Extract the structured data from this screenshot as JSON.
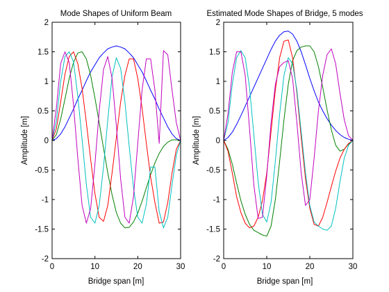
{
  "figure": {
    "background": "#ffffff"
  },
  "chart_data": [
    {
      "type": "line",
      "title": "Mode Shapes of Uniform Beam",
      "xlabel": "Bridge span [m]",
      "ylabel": "Amplitude [m]",
      "xlim": [
        0,
        30
      ],
      "ylim": [
        -2,
        2
      ],
      "xticks": [
        0,
        10,
        20,
        30
      ],
      "xtick_labels": [
        "0",
        "10",
        "20",
        "30"
      ],
      "yticks": [
        -2,
        -1.5,
        -1,
        -0.5,
        0,
        0.5,
        1,
        1.5,
        2
      ],
      "ytick_labels": [
        "-2",
        "-1.5",
        "-1",
        "-0.5",
        "0",
        "0.5",
        "1",
        "1.5",
        "2"
      ],
      "grid": false,
      "legend": "none",
      "series": [
        {
          "color": "#0000ff",
          "x": [
            0,
            1,
            2,
            3,
            4,
            5,
            6,
            7,
            8,
            9,
            10,
            11,
            12,
            13,
            14,
            15,
            16,
            17,
            18,
            19,
            20,
            21,
            22,
            23,
            24,
            25,
            26,
            27,
            28,
            29,
            30
          ],
          "y": [
            0,
            0.03,
            0.11,
            0.23,
            0.38,
            0.53,
            0.7,
            0.85,
            1.01,
            1.16,
            1.28,
            1.4,
            1.48,
            1.55,
            1.58,
            1.6,
            1.58,
            1.55,
            1.48,
            1.4,
            1.28,
            1.16,
            1.01,
            0.85,
            0.7,
            0.53,
            0.38,
            0.23,
            0.11,
            0.03,
            0
          ]
        },
        {
          "color": "#008000",
          "x": [
            0,
            1,
            2,
            3,
            4,
            5,
            6,
            7,
            8,
            9,
            10,
            11,
            12,
            13,
            14,
            15,
            16,
            17,
            18,
            19,
            20,
            21,
            22,
            23,
            24,
            25,
            26,
            27,
            28,
            29,
            30
          ],
          "y": [
            0,
            0.1,
            0.36,
            0.7,
            1.05,
            1.32,
            1.48,
            1.5,
            1.38,
            1.1,
            0.72,
            0.3,
            -0.13,
            -0.55,
            -0.92,
            -1.22,
            -1.4,
            -1.48,
            -1.47,
            -1.38,
            -1.23,
            -1.03,
            -0.8,
            -0.58,
            -0.38,
            -0.22,
            -0.1,
            -0.03,
            0.01,
            0.01,
            0
          ]
        },
        {
          "color": "#ff0000",
          "x": [
            0,
            1,
            2,
            3,
            4,
            5,
            6,
            7,
            8,
            9,
            10,
            11,
            12,
            13,
            14,
            15,
            16,
            17,
            18,
            19,
            20,
            21,
            22,
            23,
            24,
            25,
            26,
            27,
            28,
            29,
            30
          ],
          "y": [
            0,
            0.2,
            0.65,
            1.12,
            1.42,
            1.5,
            1.3,
            0.88,
            0.3,
            -0.32,
            -0.9,
            -1.3,
            -1.37,
            -1.1,
            -0.55,
            0.05,
            0.65,
            1.1,
            1.38,
            1.38,
            1.05,
            0.55,
            -0.05,
            -0.62,
            -1.05,
            -1.4,
            -1.38,
            -1.05,
            -0.55,
            -0.15,
            0
          ]
        },
        {
          "color": "#00bfbf",
          "x": [
            0,
            1,
            2,
            3,
            4,
            5,
            6,
            7,
            8,
            9,
            10,
            11,
            12,
            13,
            14,
            15,
            16,
            17,
            18,
            19,
            20,
            21,
            22,
            23,
            24,
            25,
            26,
            27,
            28,
            29,
            30
          ],
          "y": [
            0,
            0.33,
            1.0,
            1.42,
            1.5,
            1.33,
            0.75,
            0.02,
            -0.75,
            -1.3,
            -1.4,
            -1.1,
            -0.45,
            0.35,
            1.08,
            1.4,
            1.22,
            0.65,
            -0.1,
            -0.8,
            -1.3,
            -1.4,
            -1.08,
            -0.45,
            -0.45,
            -1.2,
            -1.48,
            -1.3,
            -0.75,
            -0.25,
            0
          ]
        },
        {
          "color": "#bf00bf",
          "x": [
            0,
            1,
            2,
            3,
            4,
            5,
            6,
            7,
            8,
            9,
            10,
            11,
            12,
            13,
            14,
            15,
            16,
            17,
            18,
            19,
            20,
            21,
            22,
            23,
            24,
            25,
            26,
            27,
            28,
            29,
            30
          ],
          "y": [
            0,
            0.55,
            1.3,
            1.5,
            1.32,
            0.6,
            -0.3,
            -1.1,
            -1.4,
            -1.15,
            -0.4,
            0.5,
            1.2,
            1.42,
            1.05,
            0.25,
            -0.65,
            -1.3,
            -1.4,
            -0.95,
            -0.05,
            0.85,
            1.38,
            1.38,
            0.85,
            -0.05,
            1.52,
            1.45,
            0.85,
            0.3,
            0
          ]
        }
      ]
    },
    {
      "type": "line",
      "title": "Estimated Mode Shapes of Bridge, 5 modes",
      "xlabel": "Bridge span [m]",
      "ylabel": "Amplitude [m]",
      "xlim": [
        0,
        30
      ],
      "ylim": [
        -2,
        2
      ],
      "xticks": [
        0,
        10,
        20,
        30
      ],
      "xtick_labels": [
        "0",
        "10",
        "20",
        "30"
      ],
      "yticks": [
        -2,
        -1.5,
        -1,
        -0.5,
        0,
        0.5,
        1,
        1.5,
        2
      ],
      "ytick_labels": [
        "-2",
        "-1.5",
        "-1",
        "-0.5",
        "0",
        "0.5",
        "1",
        "1.5",
        "2"
      ],
      "grid": false,
      "legend": "none",
      "series": [
        {
          "color": "#0000ff",
          "x": [
            0,
            1,
            2,
            3,
            4,
            5,
            6,
            7,
            8,
            9,
            10,
            11,
            12,
            13,
            14,
            15,
            16,
            17,
            18,
            19,
            20,
            21,
            22,
            23,
            24,
            25,
            26,
            27,
            28,
            29,
            30
          ],
          "y": [
            0,
            0.05,
            0.14,
            0.27,
            0.42,
            0.58,
            0.74,
            0.9,
            1.06,
            1.22,
            1.38,
            1.54,
            1.68,
            1.78,
            1.84,
            1.85,
            1.8,
            1.68,
            1.5,
            1.28,
            1.05,
            0.84,
            0.65,
            0.5,
            0.37,
            0.26,
            0.17,
            0.1,
            0.05,
            0.02,
            0
          ]
        },
        {
          "color": "#008000",
          "x": [
            0,
            1,
            2,
            3,
            4,
            5,
            6,
            7,
            8,
            9,
            10,
            11,
            12,
            13,
            14,
            15,
            16,
            17,
            18,
            19,
            20,
            21,
            22,
            23,
            24,
            25,
            26,
            27,
            28,
            29,
            30
          ],
          "y": [
            0,
            -0.15,
            -0.4,
            -0.72,
            -1.02,
            -1.25,
            -1.42,
            -1.52,
            -1.56,
            -1.6,
            -1.62,
            -1.45,
            -1.0,
            -0.35,
            0.35,
            0.95,
            1.35,
            1.52,
            1.58,
            1.6,
            1.6,
            1.5,
            1.25,
            0.9,
            0.52,
            0.18,
            -0.08,
            -0.18,
            -0.15,
            -0.06,
            0
          ]
        },
        {
          "color": "#ff0000",
          "x": [
            0,
            1,
            2,
            3,
            4,
            5,
            6,
            7,
            8,
            9,
            10,
            11,
            12,
            13,
            14,
            15,
            16,
            17,
            18,
            19,
            20,
            21,
            22,
            23,
            24,
            25,
            26,
            27,
            28,
            29,
            30
          ],
          "y": [
            0,
            -0.18,
            -0.55,
            -0.95,
            -1.22,
            -1.4,
            -1.48,
            -1.45,
            -1.3,
            -1.02,
            -0.55,
            0.15,
            0.85,
            1.4,
            1.68,
            1.7,
            1.4,
            0.8,
            0.05,
            -0.65,
            -1.15,
            -1.42,
            -1.45,
            -1.3,
            -1.05,
            -0.78,
            -0.52,
            -0.3,
            -0.15,
            -0.05,
            0
          ]
        },
        {
          "color": "#00bfbf",
          "x": [
            0,
            1,
            2,
            3,
            4,
            5,
            6,
            7,
            8,
            9,
            10,
            11,
            12,
            13,
            14,
            15,
            16,
            17,
            18,
            19,
            20,
            21,
            22,
            23,
            24,
            25,
            26,
            27,
            28,
            29,
            30
          ],
          "y": [
            0,
            0.3,
            0.95,
            1.4,
            1.52,
            1.4,
            0.9,
            0.1,
            -0.7,
            -1.25,
            -1.38,
            -1.05,
            -0.35,
            0.45,
            1.1,
            1.4,
            1.3,
            0.85,
            0.15,
            -0.55,
            -1.1,
            -1.38,
            -1.45,
            -1.5,
            -1.52,
            -1.45,
            -1.15,
            -0.7,
            -0.3,
            -0.08,
            0
          ]
        },
        {
          "color": "#bf00bf",
          "x": [
            0,
            1,
            2,
            3,
            4,
            5,
            6,
            7,
            8,
            9,
            10,
            11,
            12,
            13,
            14,
            15,
            16,
            17,
            18,
            19,
            20,
            21,
            22,
            23,
            24,
            25,
            26,
            27,
            28,
            29,
            30
          ],
          "y": [
            0,
            0.45,
            1.15,
            1.5,
            1.5,
            1.1,
            0.2,
            -0.75,
            -1.32,
            -1.3,
            -0.6,
            0.3,
            0.95,
            1.25,
            1.32,
            1.35,
            1.05,
            0.3,
            -0.55,
            -1.1,
            -1.0,
            -0.3,
            0.5,
            1.1,
            1.45,
            1.55,
            1.3,
            0.8,
            0.35,
            0.08,
            0
          ]
        }
      ]
    }
  ]
}
